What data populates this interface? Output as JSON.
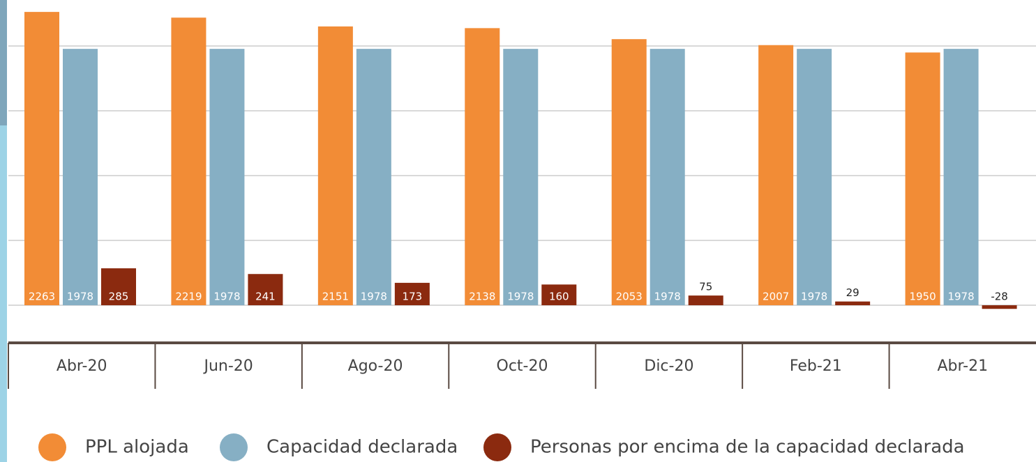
{
  "chart_data": {
    "type": "bar",
    "categories": [
      "Abr-20",
      "Jun-20",
      "Ago-20",
      "Oct-20",
      "Dic-20",
      "Feb-21",
      "Abr-21"
    ],
    "series": [
      {
        "name": "PPL alojada",
        "color": "#f28c36",
        "values": [
          2263,
          2219,
          2151,
          2138,
          2053,
          2007,
          1950
        ]
      },
      {
        "name": "Capacidad declarada",
        "color": "#86afc4",
        "values": [
          1978,
          1978,
          1978,
          1978,
          1978,
          1978,
          1978
        ]
      },
      {
        "name": "Personas por encima de la capacidad declarada",
        "color": "#8b2a0f",
        "values": [
          285,
          241,
          173,
          160,
          75,
          29,
          -28
        ]
      }
    ],
    "ylim": [
      -290,
      2355
    ],
    "yticks": [
      0,
      500,
      1000,
      1500,
      2000
    ],
    "grid": true
  }
}
